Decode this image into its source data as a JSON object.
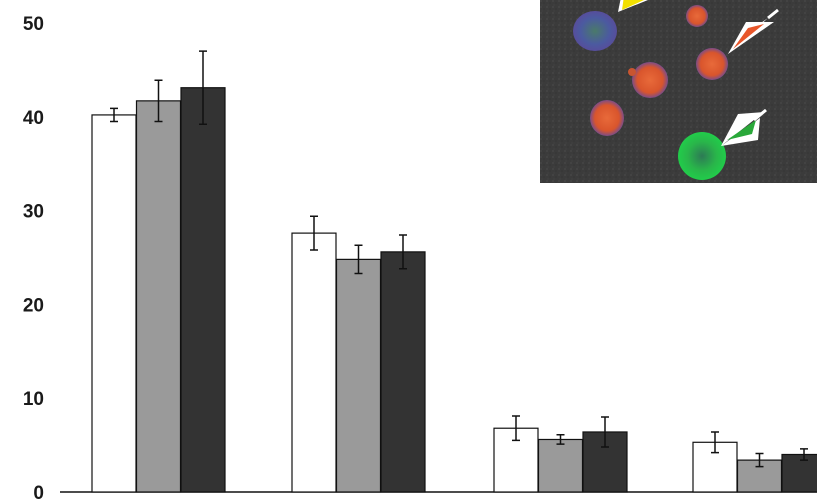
{
  "chart_data": {
    "type": "bar",
    "title": "",
    "xlabel": "",
    "ylabel": "",
    "ylim": [
      0,
      50
    ],
    "yticks": [
      0,
      10,
      20,
      30,
      40,
      50
    ],
    "categories": [
      "",
      "",
      "",
      ""
    ],
    "series": [
      {
        "color": "#ffffff",
        "values": [
          40.2,
          27.6,
          6.8,
          5.3
        ],
        "errors": [
          0.7,
          1.8,
          1.3,
          1.1
        ]
      },
      {
        "color": "#9a9a9a",
        "values": [
          41.7,
          24.8,
          5.6,
          3.4
        ],
        "errors": [
          2.2,
          1.5,
          0.5,
          0.7
        ]
      },
      {
        "color": "#333333",
        "values": [
          43.1,
          25.6,
          6.4,
          4.0
        ],
        "errors": [
          3.9,
          1.8,
          1.6,
          0.6
        ]
      }
    ],
    "legend": "none",
    "grid": false,
    "inset": {
      "description_icon": "fluorescence-micrograph-inset",
      "background": "#3a3a3a",
      "arrows": [
        {
          "color": "#f2e000",
          "icon": "yellow-arrowhead-icon"
        },
        {
          "color": "#e8562a",
          "icon": "orange-arrowhead-icon"
        },
        {
          "color": "#2aa83a",
          "icon": "green-arrowhead-icon"
        }
      ]
    }
  }
}
